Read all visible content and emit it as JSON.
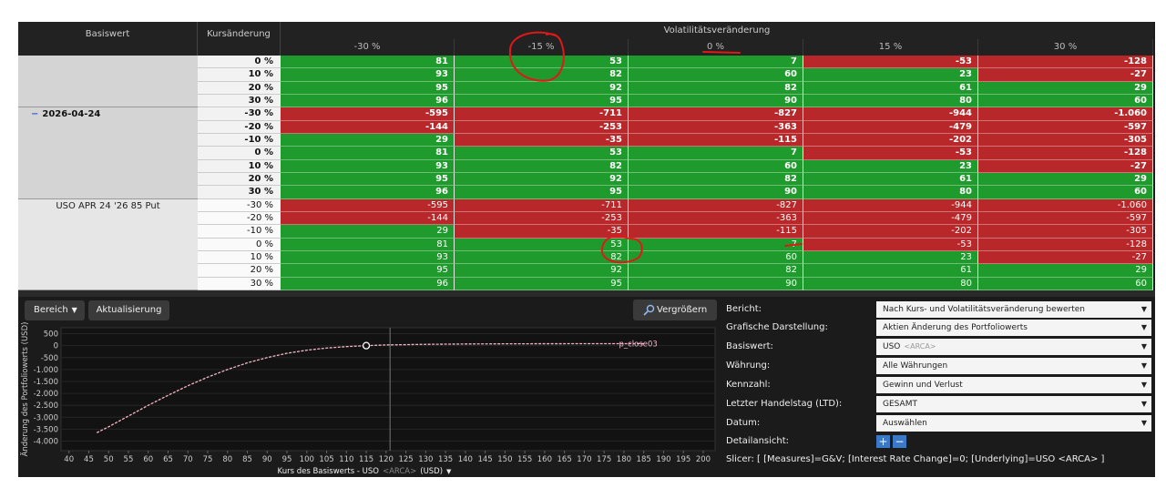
{
  "table": {
    "header": {
      "basiswert": "Basiswert",
      "kursaenderung": "Kursänderung",
      "vol_title": "Volatilitätsveränderung",
      "vol_columns": [
        "-30 %",
        "-15 %",
        "0 %",
        "15 %",
        "30 %"
      ]
    },
    "groups": [
      {
        "rows": [
          {
            "kurs": "0 %",
            "cells": [
              "81",
              "53",
              "7",
              "-53",
              "-128"
            ]
          },
          {
            "kurs": "10 %",
            "cells": [
              "93",
              "82",
              "60",
              "23",
              "-27"
            ]
          },
          {
            "kurs": "20 %",
            "cells": [
              "95",
              "92",
              "82",
              "61",
              "29"
            ]
          },
          {
            "kurs": "30 %",
            "cells": [
              "96",
              "95",
              "90",
              "80",
              "60"
            ]
          }
        ]
      },
      {
        "label": "2026-04-24",
        "rows": [
          {
            "kurs": "-30 %",
            "cells": [
              "-595",
              "-711",
              "-827",
              "-944",
              "-1.060"
            ]
          },
          {
            "kurs": "-20 %",
            "cells": [
              "-144",
              "-253",
              "-363",
              "-479",
              "-597"
            ]
          },
          {
            "kurs": "-10 %",
            "cells": [
              "29",
              "-35",
              "-115",
              "-202",
              "-305"
            ]
          },
          {
            "kurs": "0 %",
            "cells": [
              "81",
              "53",
              "7",
              "-53",
              "-128"
            ]
          },
          {
            "kurs": "10 %",
            "cells": [
              "93",
              "82",
              "60",
              "23",
              "-27"
            ]
          },
          {
            "kurs": "20 %",
            "cells": [
              "95",
              "92",
              "82",
              "61",
              "29"
            ]
          },
          {
            "kurs": "30 %",
            "cells": [
              "96",
              "95",
              "90",
              "80",
              "60"
            ]
          }
        ]
      },
      {
        "label": "USO APR 24 '26 85 Put",
        "rows": [
          {
            "kurs": "-30 %",
            "cells": [
              "-595",
              "-711",
              "-827",
              "-944",
              "-1.060"
            ]
          },
          {
            "kurs": "-20 %",
            "cells": [
              "-144",
              "-253",
              "-363",
              "-479",
              "-597"
            ]
          },
          {
            "kurs": "-10 %",
            "cells": [
              "29",
              "-35",
              "-115",
              "-202",
              "-305"
            ]
          },
          {
            "kurs": "0 %",
            "cells": [
              "81",
              "53",
              "7",
              "-53",
              "-128"
            ]
          },
          {
            "kurs": "10 %",
            "cells": [
              "93",
              "82",
              "60",
              "23",
              "-27"
            ]
          },
          {
            "kurs": "20 %",
            "cells": [
              "95",
              "92",
              "82",
              "61",
              "29"
            ]
          },
          {
            "kurs": "30 %",
            "cells": [
              "96",
              "95",
              "90",
              "80",
              "60"
            ]
          }
        ]
      }
    ]
  },
  "toolbar": {
    "range": "Bereich",
    "refresh": "Aktualisierung",
    "zoom": "Vergrößern"
  },
  "chart_data": {
    "type": "line",
    "y_label": "Änderung des Portfoliowerts (USD)",
    "x_label": "Kurs des Basiswerts - USO",
    "x_label_exchange": "<ARCA>",
    "x_label_unit": "(USD)",
    "x": [
      47,
      50,
      55,
      60,
      65,
      70,
      75,
      80,
      85,
      90,
      95,
      100,
      105,
      110,
      115,
      120,
      130,
      140,
      150,
      160,
      170,
      185
    ],
    "series": [
      {
        "name": "p_close03",
        "color": "#f2b8c6",
        "values": [
          -3650,
          -3400,
          -2950,
          -2500,
          -2080,
          -1680,
          -1320,
          -1000,
          -720,
          -500,
          -320,
          -190,
          -100,
          -40,
          0,
          30,
          55,
          70,
          77,
          80,
          82,
          83
        ]
      }
    ],
    "xlim": [
      38,
      203
    ],
    "ylim": [
      -4400,
      750
    ],
    "xticks": [
      40,
      45,
      50,
      55,
      60,
      65,
      70,
      75,
      80,
      85,
      90,
      95,
      100,
      105,
      110,
      115,
      120,
      125,
      130,
      135,
      140,
      145,
      150,
      155,
      160,
      165,
      170,
      175,
      180,
      185,
      190,
      195,
      200
    ],
    "yticks": [
      500,
      0,
      -500,
      {
        "value": -1000,
        "label": "-1.000"
      },
      {
        "value": -1500,
        "label": "-1.500"
      },
      {
        "value": -2000,
        "label": "-2.000"
      },
      {
        "value": -2500,
        "label": "-2.500"
      },
      {
        "value": -3000,
        "label": "-3.000"
      },
      {
        "value": -3500,
        "label": "-3.500"
      },
      {
        "value": -4000,
        "label": "-4.000"
      }
    ],
    "grid": true,
    "marker": {
      "x": 115,
      "y": 0
    },
    "current_price": 121
  },
  "settings": {
    "rows": [
      {
        "label": "Bericht:",
        "value": "Nach Kurs- und Volatilitätsveränderung bewerten"
      },
      {
        "label": "Grafische Darstellung:",
        "value": "Aktien Änderung des Portfoliowerts"
      },
      {
        "label": "Basiswert:",
        "value": "USO",
        "value_note": "<ARCA>"
      },
      {
        "label": "Währung:",
        "value": "Alle Währungen"
      },
      {
        "label": "Kennzahl:",
        "value": "Gewinn und Verlust"
      },
      {
        "label": "Letzter Handelstag (LTD):",
        "value": "GESAMT"
      },
      {
        "label": "Datum:",
        "value": "Auswählen"
      }
    ],
    "detail_label": "Detailansicht:",
    "slicer": "Slicer: [ [Measures]=G&V; [Interest Rate Change]=0; [Underlying]=USO <ARCA> ]"
  }
}
